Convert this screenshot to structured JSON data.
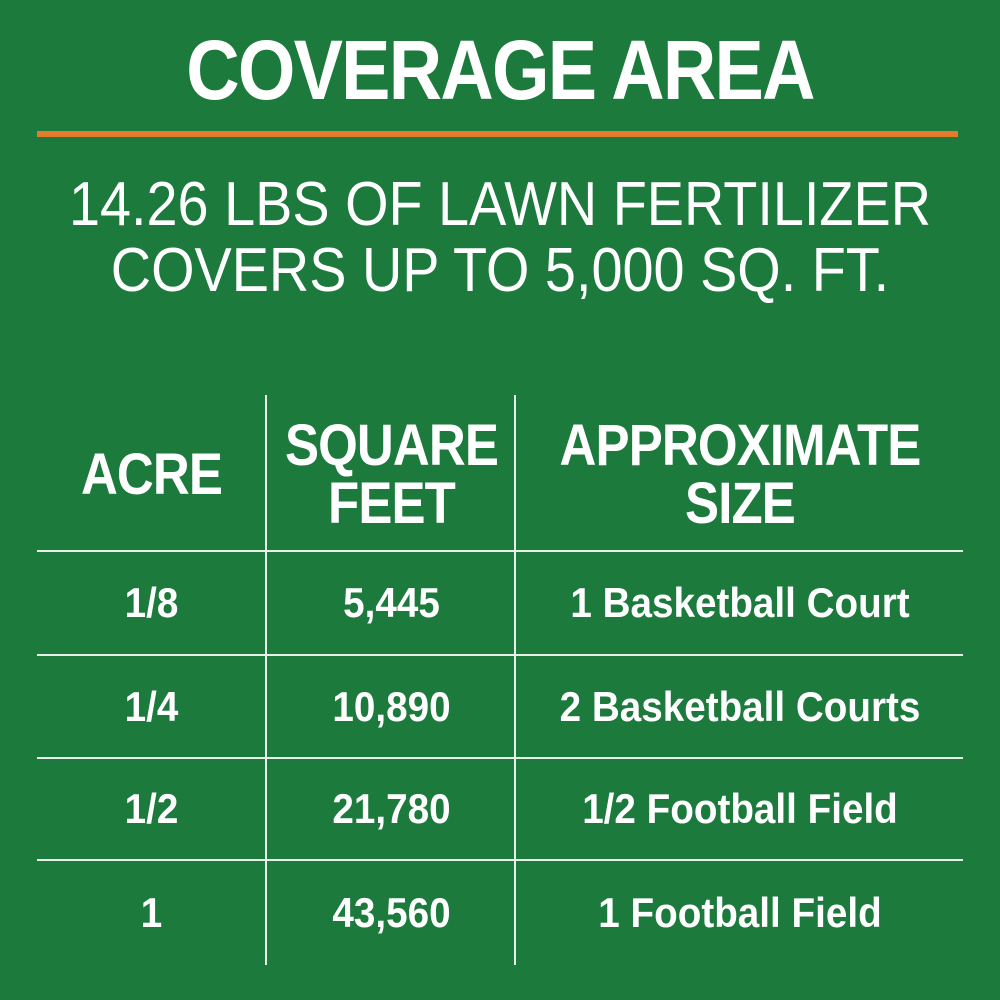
{
  "title": "COVERAGE AREA",
  "subtitle_line1": "14.26 LBS OF LAWN FERTILIZER",
  "subtitle_line2": "COVERS UP TO 5,000 SQ. FT.",
  "colors": {
    "background": "#1b7a3c",
    "accent_rule": "#e47a2b",
    "text": "#ffffff"
  },
  "table": {
    "headers": [
      "ACRE",
      "SQUARE FEET",
      "APPROXIMATE SIZE"
    ],
    "rows": [
      [
        "1/8",
        "5,445",
        "1 Basketball Court"
      ],
      [
        "1/4",
        "10,890",
        "2 Basketball Courts"
      ],
      [
        "1/2",
        "21,780",
        "1/2 Football Field"
      ],
      [
        "1",
        "43,560",
        "1 Football Field"
      ]
    ]
  }
}
